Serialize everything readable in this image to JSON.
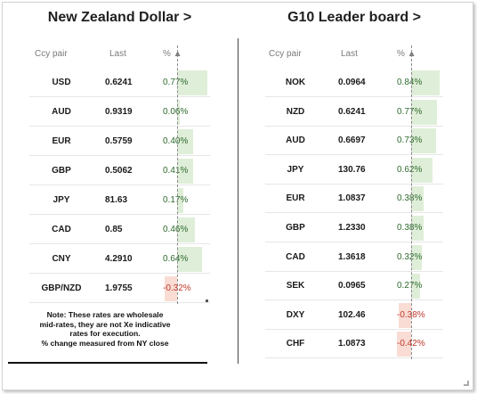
{
  "left": {
    "title": "New Zealand Dollar >",
    "headers": {
      "ccy": "Ccy pair",
      "last": "Last",
      "pct": "% ▲"
    },
    "rows": [
      {
        "ccy": "USD",
        "last": "0.6241",
        "pct": "0.77%",
        "value": 0.77
      },
      {
        "ccy": "AUD",
        "last": "0.9319",
        "pct": "0.06%",
        "value": 0.06
      },
      {
        "ccy": "EUR",
        "last": "0.5759",
        "pct": "0.40%",
        "value": 0.4
      },
      {
        "ccy": "GBP",
        "last": "0.5062",
        "pct": "0.41%",
        "value": 0.41
      },
      {
        "ccy": "JPY",
        "last": "81.63",
        "pct": "0.17%",
        "value": 0.17
      },
      {
        "ccy": "CAD",
        "last": "0.85",
        "pct": "0.46%",
        "value": 0.46
      },
      {
        "ccy": "CNY",
        "last": "4.2910",
        "pct": "0.64%",
        "value": 0.64
      },
      {
        "ccy": "GBP/NZD",
        "last": "1.9755",
        "pct": "-0.32%",
        "value": -0.32
      }
    ],
    "note": [
      "Note: These rates are wholesale",
      "mid-rates, they are not Xe indicative",
      "rates for execution.",
      "% change measured from NY close"
    ]
  },
  "right": {
    "title": "G10 Leader board >",
    "headers": {
      "ccy": "Ccy pair",
      "last": "Last",
      "pct": "% ▲"
    },
    "rows": [
      {
        "ccy": "NOK",
        "last": "0.0964",
        "pct": "0.84%",
        "value": 0.84
      },
      {
        "ccy": "NZD",
        "last": "0.6241",
        "pct": "0.77%",
        "value": 0.77
      },
      {
        "ccy": "AUD",
        "last": "0.6697",
        "pct": "0.73%",
        "value": 0.73
      },
      {
        "ccy": "JPY",
        "last": "130.76",
        "pct": "0.62%",
        "value": 0.62
      },
      {
        "ccy": "EUR",
        "last": "1.0837",
        "pct": "0.38%",
        "value": 0.38
      },
      {
        "ccy": "GBP",
        "last": "1.2330",
        "pct": "0.38%",
        "value": 0.38
      },
      {
        "ccy": "CAD",
        "last": "1.3618",
        "pct": "0.32%",
        "value": 0.32
      },
      {
        "ccy": "SEK",
        "last": "0.0965",
        "pct": "0.27%",
        "value": 0.27
      },
      {
        "ccy": "DXY",
        "last": "102.46",
        "pct": "-0.38%",
        "value": -0.38
      },
      {
        "ccy": "CHF",
        "last": "1.0873",
        "pct": "-0.42%",
        "value": -0.42
      }
    ]
  },
  "colors": {
    "positive_bar": "#dfeed8",
    "negative_bar": "#f9dcd4",
    "positive_text": "#2f6b2f",
    "negative_text": "#c0392b"
  }
}
